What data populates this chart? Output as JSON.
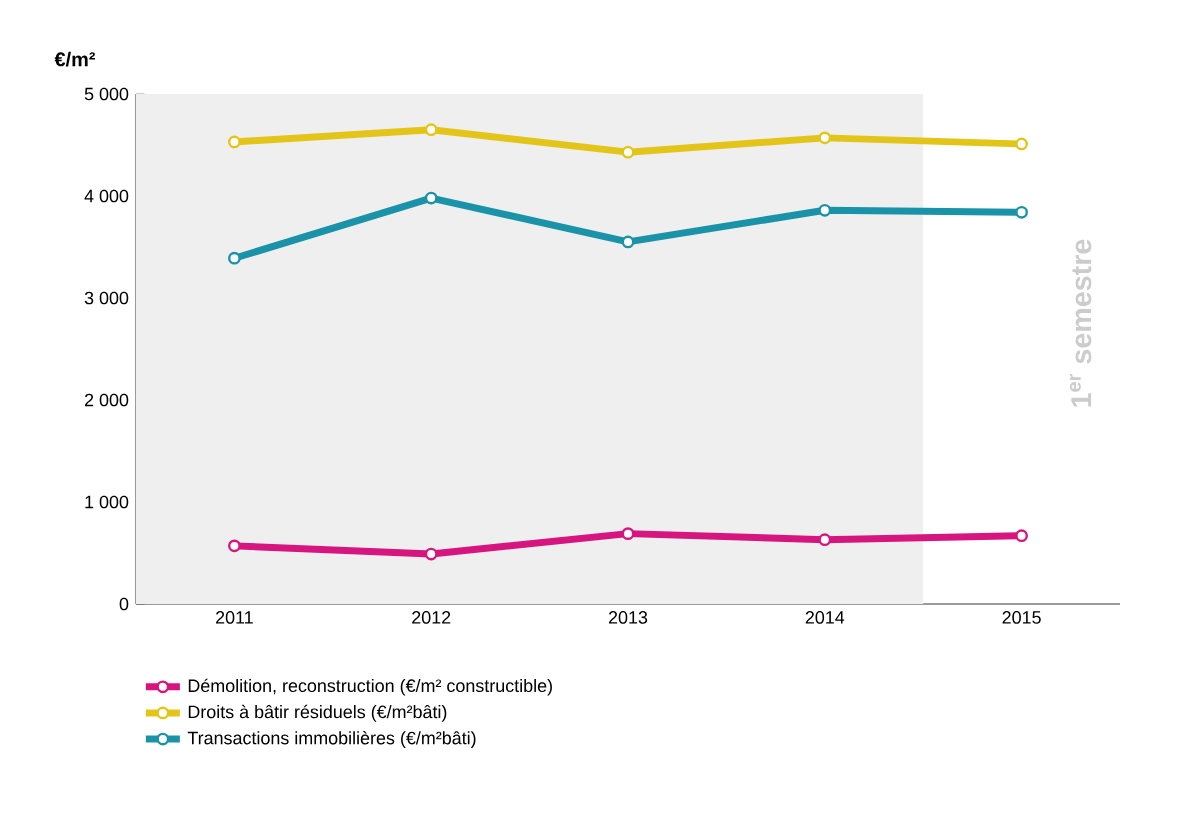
{
  "chart_data": {
    "type": "line",
    "ylabel": "€/m²",
    "categories": [
      "2011",
      "2012",
      "2013",
      "2014",
      "2015"
    ],
    "series": [
      {
        "name": "Démolition, reconstruction (€/m² constructible)",
        "color": "#d6157f",
        "values": [
          570,
          490,
          690,
          630,
          670
        ]
      },
      {
        "name": "Droits à bâtir résiduels (€/m²bâti)",
        "color": "#e3c51a",
        "values": [
          4530,
          4650,
          4430,
          4570,
          4510
        ]
      },
      {
        "name": "Transactions immobilières (€/m²bâti)",
        "color": "#1a93a8",
        "values": [
          3390,
          3980,
          3550,
          3860,
          3840
        ]
      }
    ],
    "ylim": [
      0,
      5000
    ],
    "yticks": [
      0,
      {
        "value": 1000,
        "label": "1 000"
      },
      {
        "value": 2000,
        "label": "2 000"
      },
      {
        "value": 3000,
        "label": "3 000"
      },
      {
        "value": 4000,
        "label": "4 000"
      },
      {
        "value": 5000,
        "label": "5 000"
      }
    ],
    "bands": [
      {
        "axis": "x",
        "from": "2011",
        "to": "2014",
        "color": "#efefef"
      }
    ],
    "annotations": [
      "1$^{er}$ semestre"
    ],
    "marker": "circle",
    "line_style": "solid",
    "legend": "bottom",
    "grid": false
  }
}
